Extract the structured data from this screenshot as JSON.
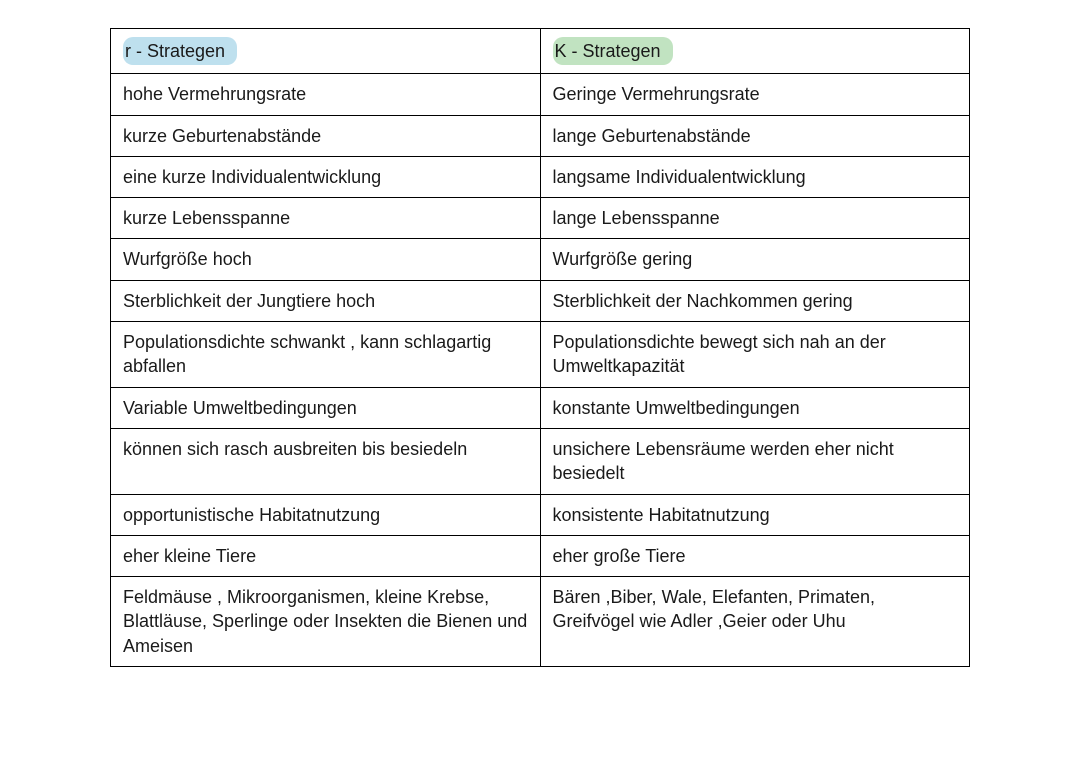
{
  "table": {
    "type": "table",
    "columns": 2,
    "border_color": "#000000",
    "background_color": "#ffffff",
    "text_color": "#1a1a1a",
    "font_size_pt": 14,
    "header": {
      "left": {
        "label": "r - Strategen",
        "highlight_color": "#bee0ee"
      },
      "right": {
        "label": "K - Strategen",
        "highlight_color": "#c1e3c1"
      }
    },
    "rows": [
      {
        "left": "hohe Vermehrungsrate",
        "right": "Geringe Vermehrungsrate"
      },
      {
        "left": "kurze Geburtenabstände",
        "right": "lange Geburtenabstände"
      },
      {
        "left": "eine kurze Individualentwicklung",
        "right": "langsame Individualentwicklung"
      },
      {
        "left": "kurze Lebensspanne",
        "right": "lange Lebensspanne"
      },
      {
        "left": "Wurfgröße hoch",
        "right": "Wurfgröße gering"
      },
      {
        "left": "Sterblichkeit der Jungtiere hoch",
        "right": "Sterblichkeit der Nachkommen gering"
      },
      {
        "left": "Populationsdichte schwankt , kann schlagartig abfallen",
        "right": "Populationsdichte bewegt sich nah an der Umweltkapazität"
      },
      {
        "left": "Variable Umweltbedingungen",
        "right": "konstante Umweltbedingungen"
      },
      {
        "left": " können sich rasch ausbreiten bis besiedeln",
        "right": "unsichere Lebensräume werden eher nicht besiedelt"
      },
      {
        "left": " opportunistische Habitatnutzung",
        "right": "konsistente Habitatnutzung"
      },
      {
        "left": "eher kleine Tiere",
        "right": "eher große Tiere"
      },
      {
        "left": "Feldmäuse , Mikroorganismen, kleine Krebse, Blattläuse, Sperlinge oder Insekten die Bienen und Ameisen",
        "right": " Bären ,Biber,  Wale, Elefanten, Primaten, Greifvögel wie Adler ,Geier oder Uhu"
      }
    ]
  }
}
